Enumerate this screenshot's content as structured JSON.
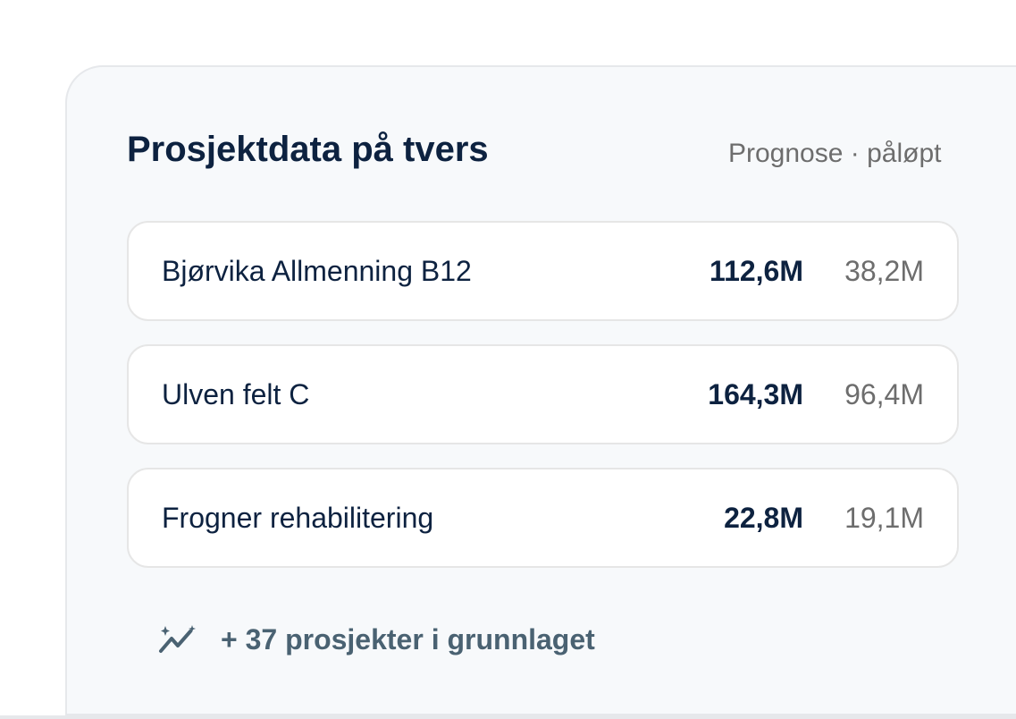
{
  "header": {
    "title": "Prosjektdata på tvers",
    "legend": "Prognose · påløpt"
  },
  "projects": [
    {
      "name": "Bjørvika Allmenning B12",
      "forecast": "112,6M",
      "accrued": "38,2M"
    },
    {
      "name": "Ulven felt C",
      "forecast": "164,3M",
      "accrued": "96,4M"
    },
    {
      "name": "Frogner rehabilitering",
      "forecast": "22,8M",
      "accrued": "19,1M"
    }
  ],
  "footer": {
    "text": "+ 37 prosjekter i grunnlaget"
  }
}
